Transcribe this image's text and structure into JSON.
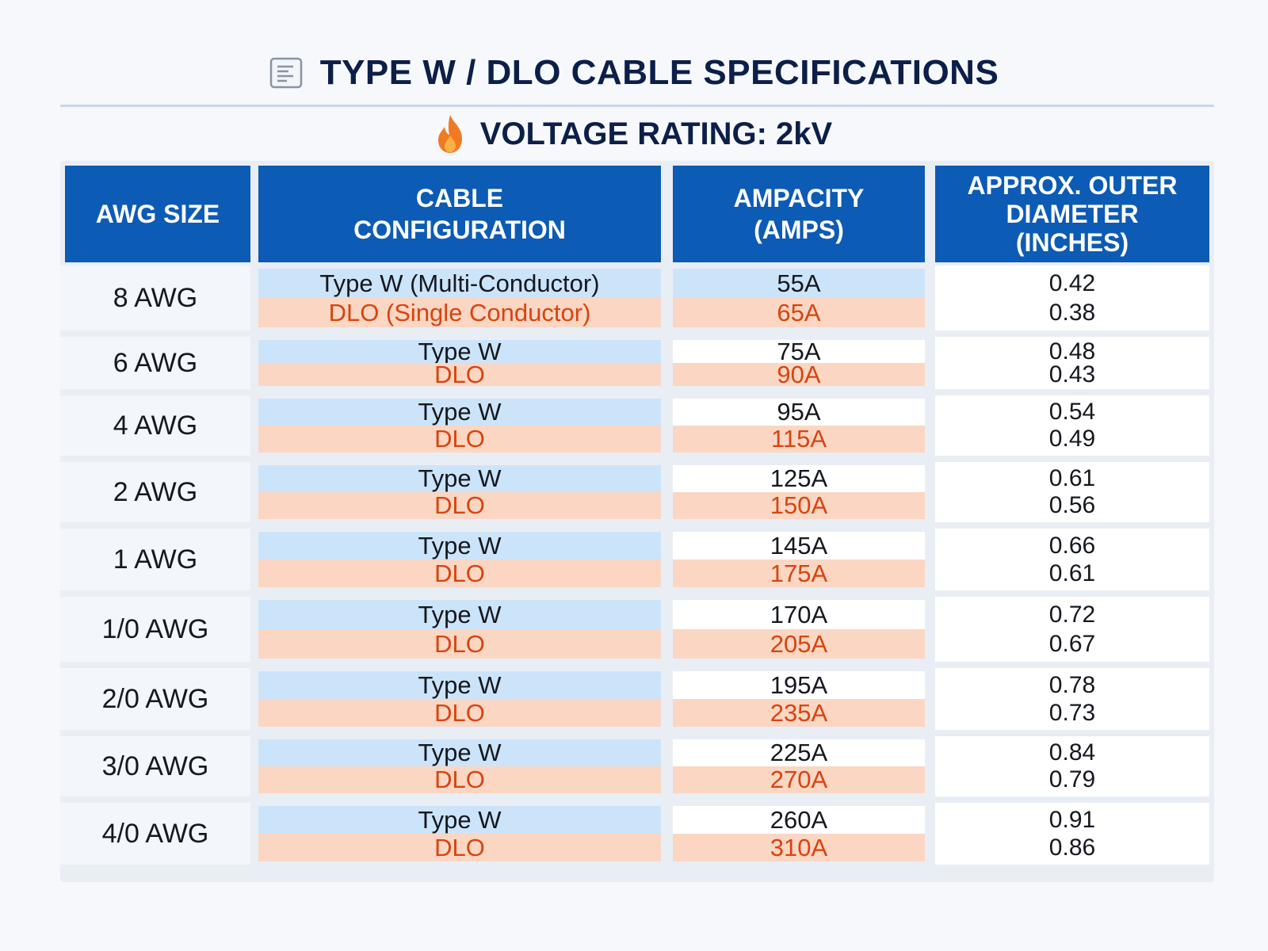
{
  "title": "TYPE W / DLO CABLE SPECIFICATIONS",
  "subtitle": "VOLTAGE RATING: 2kV",
  "icons": {
    "title_icon": "document-icon",
    "subtitle_icon": "flame-icon"
  },
  "colors": {
    "header_bg": "#0c5bb5",
    "type_w_band": "#cce4fa",
    "dlo_band": "#fbd6c3",
    "dlo_text": "#d8440f",
    "title_text": "#0c1f48"
  },
  "table": {
    "headers": {
      "awg": "AWG SIZE",
      "config": "CABLE CONFIGURATION",
      "ampacity": "AMPACITY (AMPS)",
      "od": "APPROX. OUTER DIAMETER (INCHES)"
    },
    "rows": [
      {
        "awg": "8 AWG",
        "type_w": "Type W (Multi-Conductor)",
        "dlo": "DLO (Single Conductor)",
        "amp_w": "55A",
        "amp_dlo": "65A",
        "od_w": "0.42",
        "od_dlo": "0.38"
      },
      {
        "awg": "6 AWG",
        "type_w": "Type W",
        "dlo": "DLO",
        "amp_w": "75A",
        "amp_dlo": "90A",
        "od_w": "0.48",
        "od_dlo": "0.43"
      },
      {
        "awg": "4 AWG",
        "type_w": "Type W",
        "dlo": "DLO",
        "amp_w": "95A",
        "amp_dlo": "115A",
        "od_w": "0.54",
        "od_dlo": "0.49"
      },
      {
        "awg": "2 AWG",
        "type_w": "Type W",
        "dlo": "DLO",
        "amp_w": "125A",
        "amp_dlo": "150A",
        "od_w": "0.61",
        "od_dlo": "0.56"
      },
      {
        "awg": "1 AWG",
        "type_w": "Type W",
        "dlo": "DLO",
        "amp_w": "145A",
        "amp_dlo": "175A",
        "od_w": "0.66",
        "od_dlo": "0.61"
      },
      {
        "awg": "1/0 AWG",
        "type_w": "Type W",
        "dlo": "DLO",
        "amp_w": "170A",
        "amp_dlo": "205A",
        "od_w": "0.72",
        "od_dlo": "0.67"
      },
      {
        "awg": "2/0 AWG",
        "type_w": "Type W",
        "dlo": "DLO",
        "amp_w": "195A",
        "amp_dlo": "235A",
        "od_w": "0.78",
        "od_dlo": "0.73"
      },
      {
        "awg": "3/0 AWG",
        "type_w": "Type W",
        "dlo": "DLO",
        "amp_w": "225A",
        "amp_dlo": "270A",
        "od_w": "0.84",
        "od_dlo": "0.79"
      },
      {
        "awg": "4/0 AWG",
        "type_w": "Type W",
        "dlo": "DLO",
        "amp_w": "260A",
        "amp_dlo": "310A",
        "od_w": "0.91",
        "od_dlo": "0.86"
      }
    ]
  }
}
